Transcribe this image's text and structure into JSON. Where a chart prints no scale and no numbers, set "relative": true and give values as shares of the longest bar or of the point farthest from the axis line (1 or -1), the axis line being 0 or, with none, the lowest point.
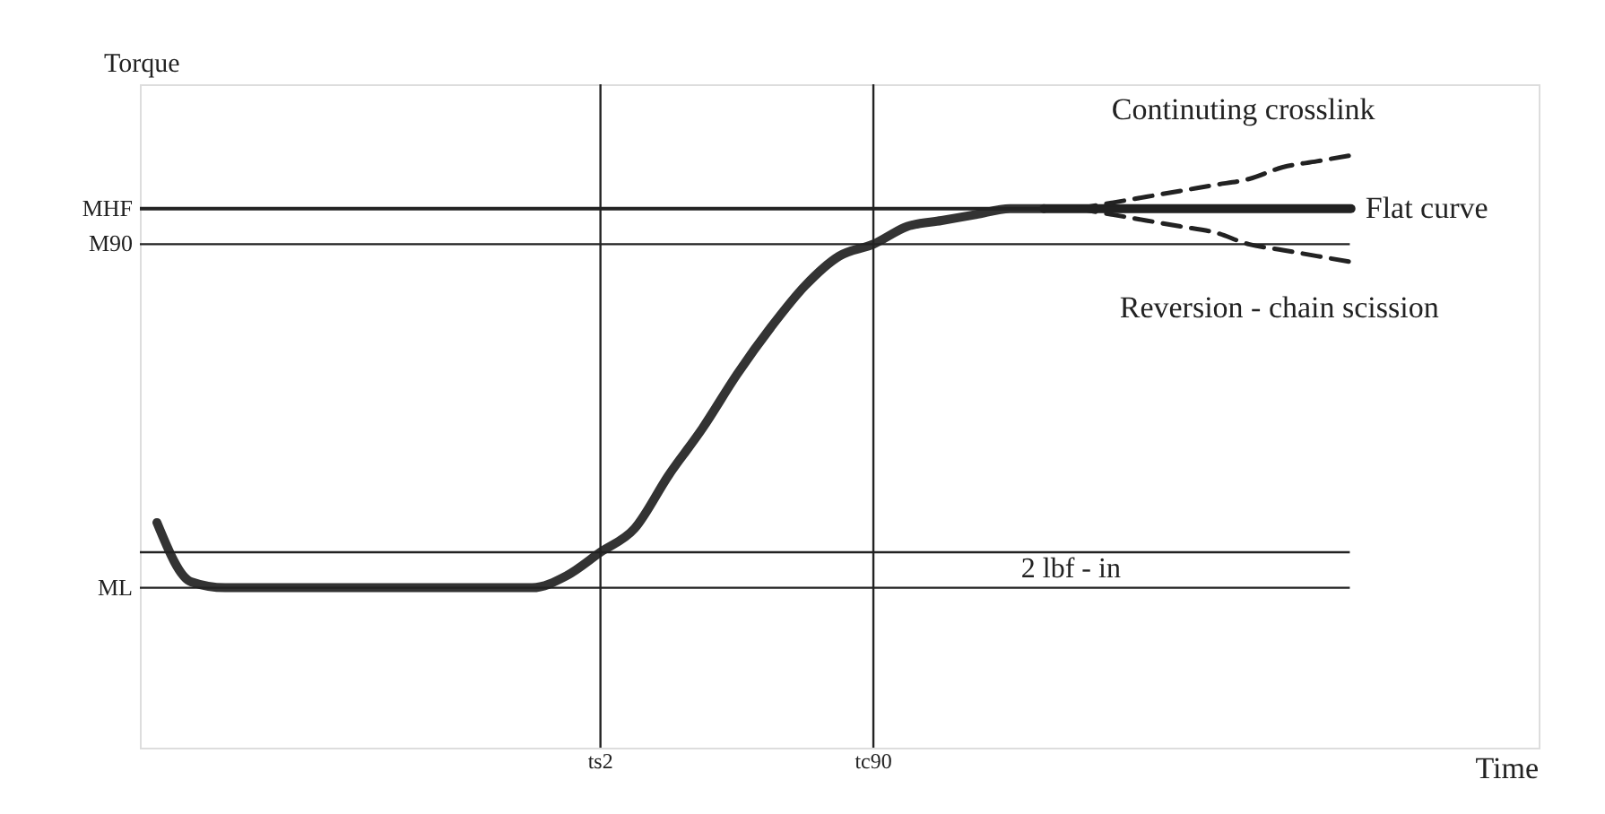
{
  "chart_data": {
    "type": "line",
    "relative": true,
    "xlabel": "Time",
    "ylabel": "Torque",
    "categories": [
      null,
      null,
      null,
      null,
      null,
      null,
      null,
      null,
      null,
      null,
      null,
      null,
      null,
      "ts2",
      null,
      null,
      null,
      null,
      null,
      null,
      null,
      "tc90",
      null,
      null,
      null,
      null,
      null,
      null,
      null,
      null,
      null,
      null,
      null,
      null,
      null,
      null,
      null,
      null,
      null,
      null,
      null
    ],
    "grid": false,
    "legend": false,
    "line_style": "solid",
    "marker": "none",
    "series": [
      {
        "color": "#333333",
        "values": [
          0.38,
          0.28,
          0.27,
          0.27,
          0.27,
          0.27,
          0.27,
          0.27,
          0.27,
          0.27,
          0.27,
          0.27,
          0.29,
          0.33,
          0.37,
          0.46,
          0.54,
          0.63,
          0.71,
          0.78,
          0.83,
          0.85,
          0.88,
          0.89,
          0.9,
          0.91,
          0.91,
          null,
          null,
          null,
          null,
          null,
          null,
          null,
          null,
          null,
          null,
          null,
          null,
          null,
          null
        ]
      },
      {
        "name": "Flat curve",
        "color": "#222222",
        "values": [
          null,
          null,
          null,
          null,
          null,
          null,
          null,
          null,
          null,
          null,
          null,
          null,
          null,
          null,
          null,
          null,
          null,
          null,
          null,
          null,
          null,
          null,
          null,
          null,
          null,
          null,
          0.91,
          0.91,
          0.91,
          0.91,
          0.91,
          0.91,
          0.91,
          0.91,
          0.91,
          0.91,
          null,
          null,
          null,
          null,
          null
        ]
      },
      {
        "name": "Continuting crosslink",
        "color": "#222222",
        "line_style": "dashed",
        "values": [
          null,
          null,
          null,
          null,
          null,
          null,
          null,
          null,
          null,
          null,
          null,
          null,
          null,
          null,
          null,
          null,
          null,
          null,
          null,
          null,
          null,
          null,
          null,
          null,
          null,
          null,
          null,
          0.91,
          0.92,
          0.93,
          0.94,
          0.95,
          0.96,
          0.98,
          0.99,
          1.0,
          null,
          null,
          null,
          null,
          null
        ]
      },
      {
        "name": "Reversion - chain scission",
        "color": "#222222",
        "line_style": "dashed",
        "values": [
          null,
          null,
          null,
          null,
          null,
          null,
          null,
          null,
          null,
          null,
          null,
          null,
          null,
          null,
          null,
          null,
          null,
          null,
          null,
          null,
          null,
          null,
          null,
          null,
          null,
          null,
          null,
          0.91,
          0.9,
          0.89,
          0.88,
          0.87,
          0.85,
          0.84,
          0.83,
          0.82,
          null,
          null,
          null,
          null,
          null
        ]
      }
    ],
    "ref_lines": [
      {
        "axis": "y",
        "value": 0.91,
        "label": "MHF",
        "color": "#222222"
      },
      {
        "axis": "y",
        "value": 0.85,
        "label": "M90",
        "color": "#222222"
      },
      {
        "axis": "y",
        "value": 0.27,
        "label": "ML",
        "color": "#222222"
      },
      {
        "axis": "y",
        "value": 0.33,
        "color": "#222222"
      },
      {
        "axis": "x",
        "value": "ts2",
        "color": "#222222"
      },
      {
        "axis": "x",
        "value": "tc90",
        "color": "#222222"
      }
    ],
    "annotations": [
      "2 lbf - in"
    ]
  }
}
